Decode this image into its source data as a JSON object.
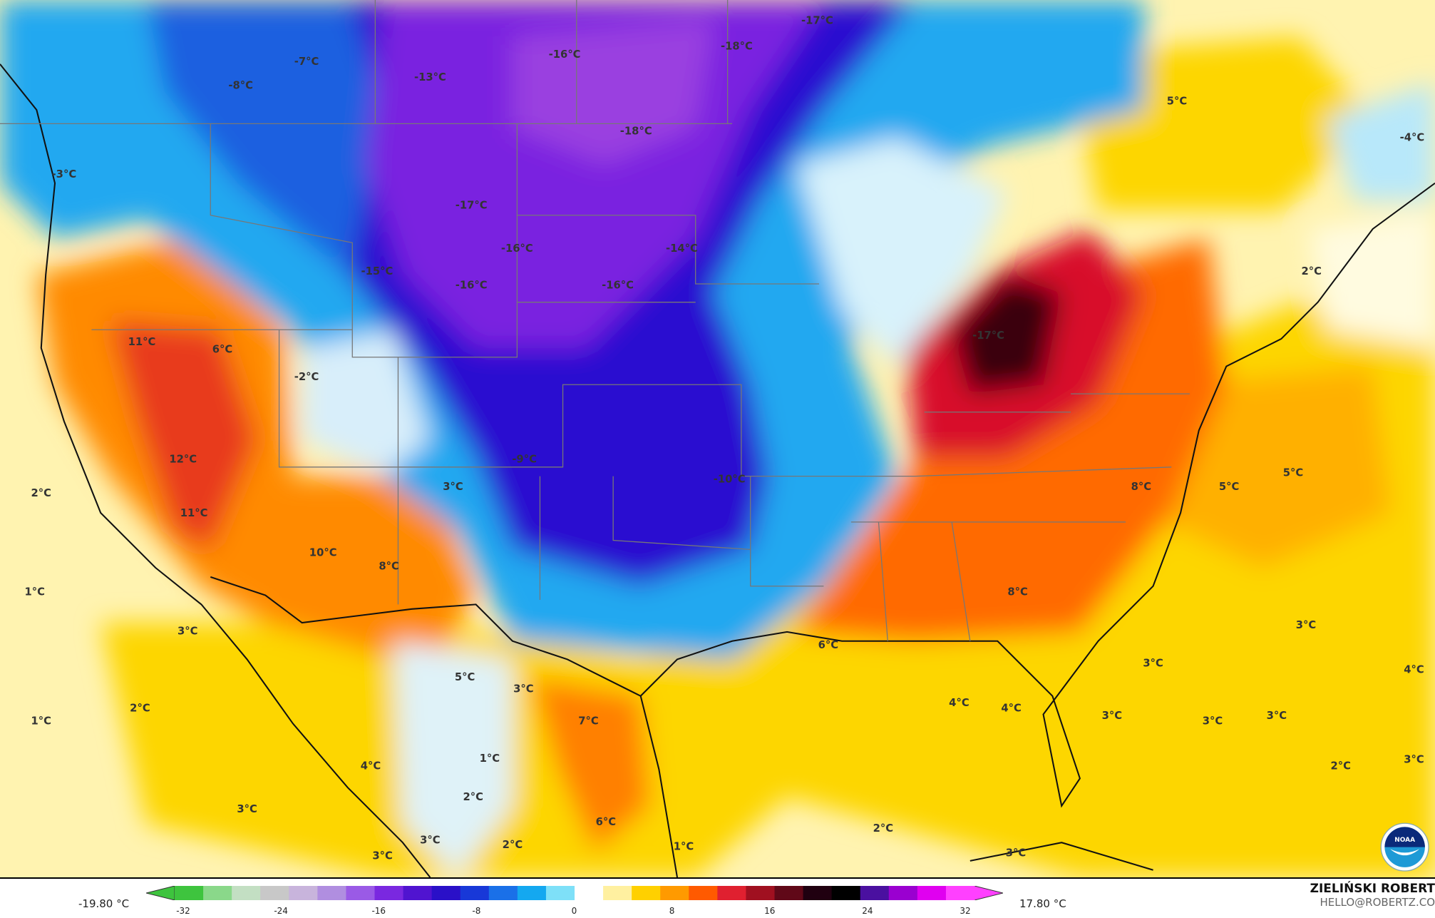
{
  "map": {
    "variable_unit": "°C",
    "labels": [
      "-7°C",
      "-8°C",
      "-13°C",
      "-16°C",
      "-18°C",
      "-17°C",
      "5°C",
      "-4°C",
      "-3°C",
      "-18°C",
      "-17°C",
      "-16°C",
      "-14°C",
      "-15°C",
      "-16°C",
      "-16°C",
      "2°C",
      "11°C",
      "6°C",
      "-2°C",
      "-17°C",
      "12°C",
      "-9°C",
      "3°C",
      "-10°C",
      "8°C",
      "5°C",
      "5°C",
      "2°C",
      "11°C",
      "10°C",
      "8°C",
      "1°C",
      "8°C",
      "3°C",
      "6°C",
      "3°C",
      "3°C",
      "4°C",
      "5°C",
      "3°C",
      "4°C",
      "4°C",
      "2°C",
      "1°C",
      "7°C",
      "3°C",
      "3°C",
      "3°C",
      "1°C",
      "4°C",
      "2°C",
      "3°C",
      "3°C",
      "2°C",
      "6°C",
      "2°C",
      "3°C",
      "2°C",
      "1°C",
      "3°C",
      "3°C"
    ],
    "logo": "NOAA"
  },
  "colorbar": {
    "min_label": "-19.80 °C",
    "max_label": "17.80 °C",
    "ticks": [
      "-32",
      "-24",
      "-16",
      "-8",
      "0",
      "8",
      "16",
      "24",
      "32"
    ],
    "colors": [
      "#3ec43e",
      "#8ad88a",
      "#c3dfc3",
      "#c8c8c8",
      "#c8b4dc",
      "#b08ee0",
      "#9a5ae6",
      "#7a28e0",
      "#5014d0",
      "#2a10c8",
      "#1838d8",
      "#1a70e8",
      "#14a8f0",
      "#7ee0f8",
      "#ffffff",
      "#fff0a0",
      "#ffd000",
      "#ff9a00",
      "#ff5a00",
      "#e02030",
      "#a01020",
      "#600818",
      "#200010",
      "#000000",
      "#4a10a0",
      "#9a00d0",
      "#e000f0",
      "#ff40ff"
    ]
  },
  "brand": {
    "name": "ZIELIŃSKI ROBERT",
    "email": "HELLO@ROBERTZ.CO"
  }
}
